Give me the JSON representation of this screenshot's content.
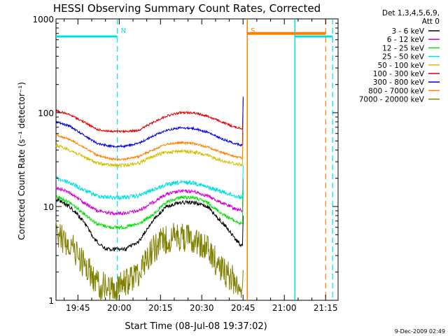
{
  "chart_data": {
    "type": "line",
    "title": "HESSI Observing Summary Count Rates, Corrected",
    "xlabel": "Start Time (08-Jul-08 19:37:02)",
    "ylabel": "Corrected Count Rate (s⁻¹ detector⁻¹)",
    "yscale": "log",
    "ylim": [
      1,
      1000
    ],
    "xlim_minutes_after_start": [
      0,
      102.5
    ],
    "x_ticks": [
      {
        "label": "19:45",
        "minutes": 7.97
      },
      {
        "label": "20:00",
        "minutes": 22.97
      },
      {
        "label": "20:15",
        "minutes": 37.97
      },
      {
        "label": "20:30",
        "minutes": 52.97
      },
      {
        "label": "20:45",
        "minutes": 67.97
      },
      {
        "label": "21:00",
        "minutes": 82.97
      },
      {
        "label": "21:15",
        "minutes": 97.97
      }
    ],
    "y_ticks": [
      {
        "label": "1",
        "value": 1
      },
      {
        "label": "10",
        "value": 10
      },
      {
        "label": "100",
        "value": 100
      },
      {
        "label": "1000",
        "value": 1000
      }
    ],
    "legend": {
      "placement": "right-outside",
      "header": [
        "Det 1,3,4,5,6,9,",
        "Att 0"
      ]
    },
    "series": [
      {
        "name": "3 - 6 keV",
        "color": "#000000",
        "noise": 0.9,
        "spike": 1.1,
        "points": [
          [
            0,
            12
          ],
          [
            5,
            10
          ],
          [
            10,
            7
          ],
          [
            14,
            4.5
          ],
          [
            18,
            3.5
          ],
          [
            25,
            3.5
          ],
          [
            30,
            4.2
          ],
          [
            35,
            7
          ],
          [
            40,
            10
          ],
          [
            45,
            11
          ],
          [
            50,
            11
          ],
          [
            55,
            10
          ],
          [
            58,
            8
          ],
          [
            62,
            6
          ],
          [
            65,
            4.5
          ],
          [
            67.5,
            3.8
          ]
        ]
      },
      {
        "name": "6 - 12 keV",
        "color": "#d000d0",
        "noise": 0.8,
        "spike": 1.2,
        "points": [
          [
            0,
            16
          ],
          [
            5,
            14
          ],
          [
            10,
            11
          ],
          [
            15,
            9
          ],
          [
            20,
            8.5
          ],
          [
            25,
            8.5
          ],
          [
            30,
            9
          ],
          [
            35,
            11
          ],
          [
            40,
            13.5
          ],
          [
            45,
            14.5
          ],
          [
            50,
            14.5
          ],
          [
            55,
            13
          ],
          [
            60,
            11
          ],
          [
            65,
            9.5
          ],
          [
            67.5,
            9
          ]
        ]
      },
      {
        "name": "12 - 25 keV",
        "color": "#00e000",
        "noise": 0.8,
        "spike": 1.3,
        "points": [
          [
            0,
            13
          ],
          [
            5,
            11
          ],
          [
            10,
            8.5
          ],
          [
            15,
            6.5
          ],
          [
            20,
            6
          ],
          [
            25,
            6
          ],
          [
            30,
            6.5
          ],
          [
            35,
            8
          ],
          [
            40,
            11
          ],
          [
            45,
            12.5
          ],
          [
            50,
            12.5
          ],
          [
            55,
            11
          ],
          [
            60,
            8.5
          ],
          [
            65,
            7
          ],
          [
            67.5,
            6.5
          ]
        ]
      },
      {
        "name": "25 - 50 keV",
        "color": "#00e0e0",
        "noise": 1.0,
        "spike": 1.2,
        "points": [
          [
            0,
            20
          ],
          [
            5,
            18
          ],
          [
            10,
            15
          ],
          [
            15,
            13
          ],
          [
            20,
            12.5
          ],
          [
            25,
            12.5
          ],
          [
            30,
            13
          ],
          [
            35,
            15
          ],
          [
            40,
            17
          ],
          [
            45,
            18
          ],
          [
            50,
            18
          ],
          [
            55,
            16
          ],
          [
            60,
            14.5
          ],
          [
            65,
            13
          ],
          [
            67.5,
            12.5
          ]
        ]
      },
      {
        "name": "50 - 100 keV",
        "color": "#d0c000",
        "noise": 0.8,
        "spike": 1.2,
        "points": [
          [
            0,
            45
          ],
          [
            5,
            40
          ],
          [
            10,
            34
          ],
          [
            15,
            29
          ],
          [
            20,
            27.5
          ],
          [
            25,
            27.5
          ],
          [
            30,
            29
          ],
          [
            35,
            34
          ],
          [
            40,
            38
          ],
          [
            45,
            39
          ],
          [
            50,
            38
          ],
          [
            55,
            35
          ],
          [
            60,
            31
          ],
          [
            65,
            28.5
          ],
          [
            67.5,
            28
          ]
        ]
      },
      {
        "name": "100 - 300 keV",
        "color": "#e00000",
        "noise": 0.5,
        "spike": 1.1,
        "points": [
          [
            0,
            105
          ],
          [
            5,
            95
          ],
          [
            10,
            80
          ],
          [
            15,
            66
          ],
          [
            20,
            63
          ],
          [
            25,
            63
          ],
          [
            30,
            65
          ],
          [
            35,
            78
          ],
          [
            40,
            92
          ],
          [
            45,
            100
          ],
          [
            50,
            100
          ],
          [
            55,
            92
          ],
          [
            60,
            80
          ],
          [
            65,
            70
          ],
          [
            67.5,
            68
          ]
        ]
      },
      {
        "name": "300 - 800 keV",
        "color": "#0000e0",
        "noise": 0.5,
        "spike": 2.3,
        "points": [
          [
            0,
            80
          ],
          [
            5,
            72
          ],
          [
            10,
            58
          ],
          [
            15,
            47
          ],
          [
            20,
            44
          ],
          [
            25,
            44
          ],
          [
            30,
            47
          ],
          [
            35,
            56
          ],
          [
            40,
            65
          ],
          [
            45,
            69
          ],
          [
            50,
            68
          ],
          [
            55,
            62
          ],
          [
            60,
            53
          ],
          [
            65,
            47
          ],
          [
            67.5,
            45
          ]
        ]
      },
      {
        "name": "800 - 7000 keV",
        "color": "#ff8000",
        "noise": 0.5,
        "spike": 1.3,
        "points": [
          [
            0,
            58
          ],
          [
            5,
            52
          ],
          [
            10,
            43
          ],
          [
            15,
            35
          ],
          [
            20,
            32
          ],
          [
            25,
            32
          ],
          [
            30,
            34
          ],
          [
            35,
            40
          ],
          [
            40,
            46
          ],
          [
            45,
            48
          ],
          [
            50,
            47
          ],
          [
            55,
            43
          ],
          [
            60,
            38
          ],
          [
            65,
            34
          ],
          [
            67.5,
            33
          ]
        ]
      },
      {
        "name": "7000 - 20000 keV",
        "color": "#808000",
        "noise": 3.5,
        "spike": 0.5,
        "points": [
          [
            0,
            5
          ],
          [
            5,
            4
          ],
          [
            10,
            2.5
          ],
          [
            15,
            1.5
          ],
          [
            20,
            1.3
          ],
          [
            25,
            1.5
          ],
          [
            30,
            2
          ],
          [
            35,
            3.5
          ],
          [
            40,
            4.5
          ],
          [
            45,
            4.8
          ],
          [
            50,
            4.5
          ],
          [
            55,
            3.5
          ],
          [
            60,
            2.2
          ],
          [
            65,
            1.6
          ],
          [
            67.5,
            1.4
          ]
        ]
      }
    ],
    "annotations": [
      {
        "text": "N",
        "color": "#00e0e0",
        "minutes": 22.3
      },
      {
        "text": "S",
        "color": "#ff8000",
        "minutes": 69.5
      }
    ],
    "night_markers": {
      "color": "#00e0e0",
      "rate": 650,
      "bars_minutes": [
        [
          0,
          22.3
        ],
        [
          86.8,
          100.5
        ]
      ],
      "solid_minutes": [
        86.8
      ],
      "dashed_minutes": [
        22.3,
        100.5
      ]
    },
    "saa_markers": {
      "color": "#ff8000",
      "rate": 700,
      "bars_minutes": [
        [
          69.5,
          98.0
        ]
      ],
      "solid_minutes": [
        69.5
      ],
      "dashed_minutes": [
        98.0
      ]
    },
    "footer_timestamp": "9-Dec-2009 02:49"
  }
}
